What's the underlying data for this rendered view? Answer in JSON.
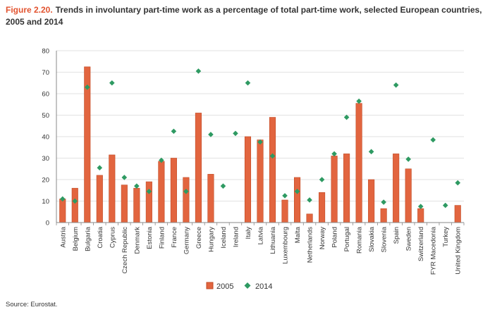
{
  "figure": {
    "label": "Figure 2.20.",
    "title": "Trends in involuntary part-time work as a percentage of total part-time work, selected European countries, 2005 and 2014",
    "source": "Source: Eurostat."
  },
  "colors": {
    "bar": "#e2653f",
    "bar_edge": "#c04a24",
    "marker": "#2e9a62",
    "grid": "#d9d9d9",
    "axis": "#888888"
  },
  "chart_data": {
    "type": "bar",
    "title": "Trends in involuntary part-time work as a percentage of total part-time work, selected European countries, 2005 and 2014",
    "xlabel": "",
    "ylabel": "",
    "ylim": [
      0,
      80
    ],
    "yticks": [
      0,
      10,
      20,
      30,
      40,
      50,
      60,
      70,
      80
    ],
    "categories": [
      "Austria",
      "Belgium",
      "Bulgaria",
      "Croatia",
      "Cyprus",
      "Czech Republic",
      "Denmark",
      "Estonia",
      "Finland",
      "France",
      "Germany",
      "Greece",
      "Hungary",
      "Iceland",
      "Ireland",
      "Italy",
      "Latvia",
      "Lithuania",
      "Luxembourg",
      "Malta",
      "Netherlands",
      "Norway",
      "Poland",
      "Portugal",
      "Romania",
      "Slovakia",
      "Slovenia",
      "Spain",
      "Sweden",
      "Switzerland",
      "FYR Macedonia",
      "Turkey",
      "United Kingdom"
    ],
    "series": [
      {
        "name": "2005",
        "kind": "bar",
        "values": [
          11,
          16,
          72.5,
          22,
          31.5,
          17.5,
          16,
          19,
          28.5,
          30,
          21,
          51,
          22.5,
          null,
          null,
          40,
          38.5,
          49,
          10.5,
          21,
          4,
          14,
          31,
          32,
          55.5,
          20,
          6.5,
          32,
          25,
          6.5,
          null,
          null,
          8
        ]
      },
      {
        "name": "2014",
        "kind": "marker",
        "values": [
          11,
          10,
          63,
          25.5,
          65,
          21,
          17,
          14.5,
          29,
          42.5,
          14.5,
          70.5,
          41,
          17,
          41.5,
          65,
          37.5,
          31,
          12.5,
          14.5,
          10.5,
          20,
          32,
          49,
          56.5,
          33,
          9.5,
          64,
          29.5,
          7.5,
          38.5,
          8,
          18.5
        ]
      }
    ],
    "legend": {
      "placement": "bottom-center",
      "entries": [
        "2005",
        "2014"
      ]
    }
  }
}
